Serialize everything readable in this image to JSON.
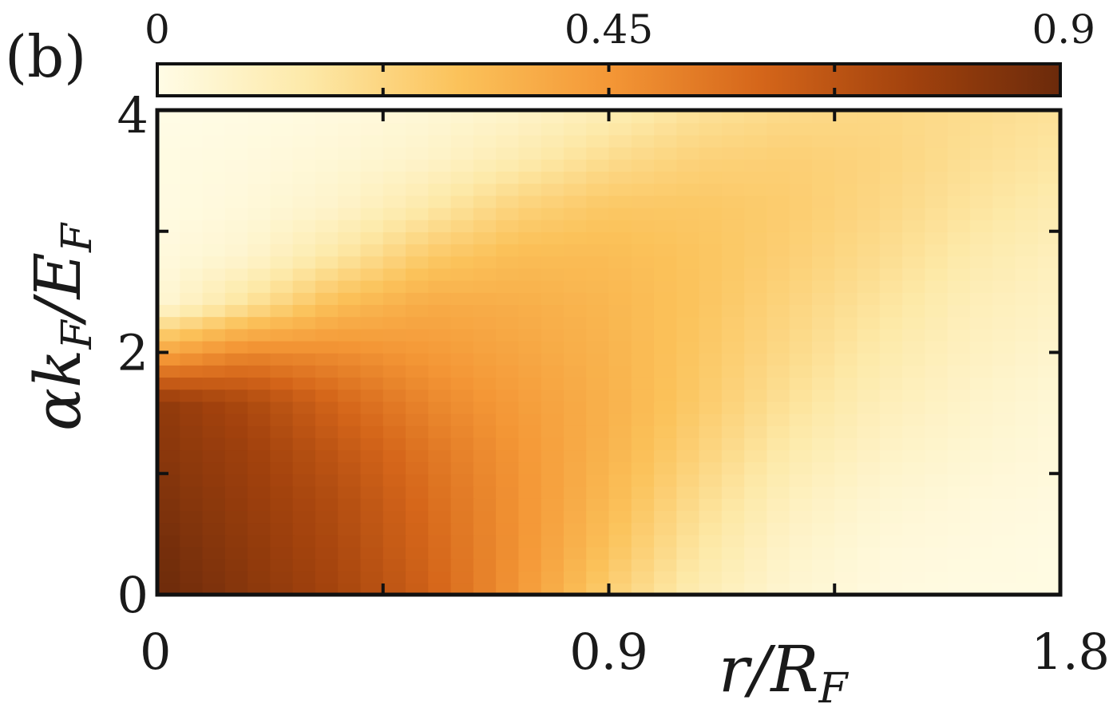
{
  "chart_data": {
    "type": "heatmap",
    "panel_label": "(b)",
    "xlabel": {
      "main": "r/R",
      "sub": "F"
    },
    "ylabel": {
      "main": "αk",
      "sub1": "F",
      "mid": "/E",
      "sub2": "F"
    },
    "xlim": [
      0,
      1.8
    ],
    "ylim": [
      0,
      4
    ],
    "x_ticks": [
      0,
      0.45,
      0.9,
      1.35,
      1.8
    ],
    "x_tick_labels": [
      "0",
      "",
      "0.9",
      "",
      "1.8"
    ],
    "y_ticks": [
      0,
      1,
      2,
      3,
      4
    ],
    "y_tick_labels": [
      "0",
      "",
      "2",
      "",
      "4"
    ],
    "colorbar": {
      "range": [
        0,
        0.9
      ],
      "ticks": [
        0,
        0.225,
        0.45,
        0.675,
        0.9
      ],
      "tick_labels": [
        "0",
        "",
        "0.45",
        "",
        "0.9"
      ],
      "placement": "top",
      "colors": [
        "#fffce6",
        "#fde9a8",
        "#fbc25a",
        "#f49736",
        "#d5661a",
        "#a2420d",
        "#6b2a0b"
      ]
    },
    "description_grid": {
      "x": [
        0,
        0.18,
        0.36,
        0.54,
        0.72,
        0.9,
        1.08,
        1.26,
        1.44,
        1.62,
        1.8
      ],
      "y": [
        0,
        0.4,
        0.8,
        1.2,
        1.6,
        2.0,
        2.4,
        2.8,
        3.2,
        3.6,
        4.0
      ],
      "z": [
        [
          0.9,
          0.82,
          0.74,
          0.62,
          0.45,
          0.25,
          0.12,
          0.05,
          0.02,
          0.01,
          0.01
        ],
        [
          0.88,
          0.8,
          0.72,
          0.6,
          0.46,
          0.3,
          0.16,
          0.07,
          0.03,
          0.02,
          0.01
        ],
        [
          0.85,
          0.78,
          0.7,
          0.58,
          0.46,
          0.33,
          0.2,
          0.1,
          0.05,
          0.03,
          0.02
        ],
        [
          0.82,
          0.76,
          0.66,
          0.55,
          0.45,
          0.35,
          0.24,
          0.14,
          0.08,
          0.05,
          0.03
        ],
        [
          0.8,
          0.72,
          0.6,
          0.5,
          0.43,
          0.36,
          0.27,
          0.18,
          0.11,
          0.07,
          0.04
        ],
        [
          0.4,
          0.5,
          0.48,
          0.44,
          0.4,
          0.35,
          0.28,
          0.21,
          0.14,
          0.09,
          0.06
        ],
        [
          0.04,
          0.18,
          0.32,
          0.38,
          0.37,
          0.34,
          0.29,
          0.23,
          0.17,
          0.11,
          0.08
        ],
        [
          0.02,
          0.06,
          0.16,
          0.27,
          0.32,
          0.32,
          0.29,
          0.25,
          0.2,
          0.14,
          0.1
        ],
        [
          0.01,
          0.03,
          0.07,
          0.15,
          0.24,
          0.28,
          0.28,
          0.26,
          0.22,
          0.17,
          0.13
        ],
        [
          0.01,
          0.02,
          0.04,
          0.07,
          0.13,
          0.2,
          0.24,
          0.25,
          0.23,
          0.19,
          0.16
        ],
        [
          0.0,
          0.01,
          0.02,
          0.04,
          0.07,
          0.12,
          0.18,
          0.21,
          0.22,
          0.2,
          0.18
        ]
      ]
    }
  }
}
